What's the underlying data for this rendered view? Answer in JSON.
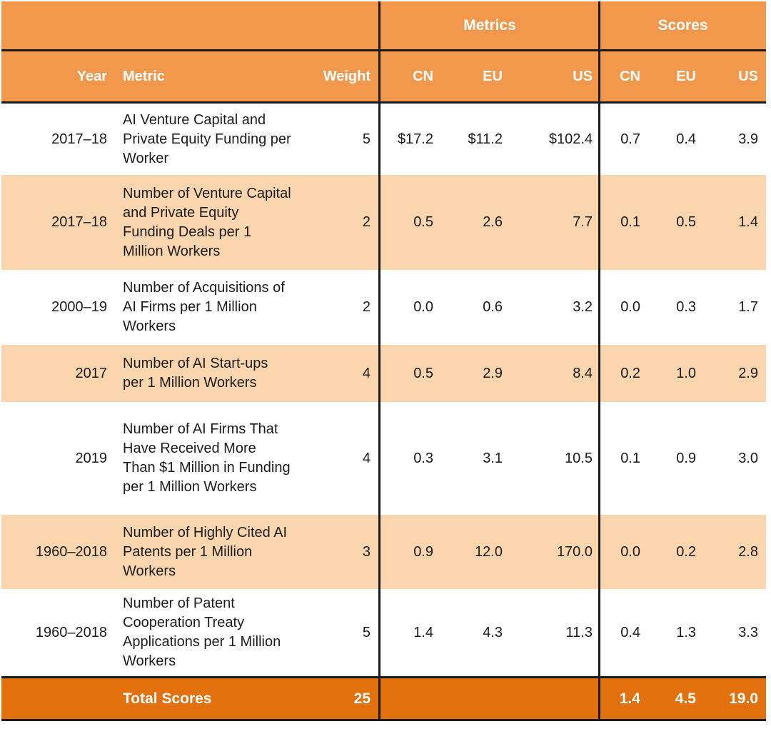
{
  "chart_data": {
    "type": "table",
    "group_headers": {
      "metrics": "Metrics",
      "scores": "Scores"
    },
    "column_headers": {
      "year": "Year",
      "metric": "Metric",
      "weight": "Weight",
      "metrics_cn": "CN",
      "metrics_eu": "EU",
      "metrics_us": "US",
      "scores_cn": "CN",
      "scores_eu": "EU",
      "scores_us": "US"
    },
    "rows": [
      {
        "year": "2017–18",
        "metric": "AI Venture Capital and Private Equity Funding per Worker",
        "weight": "5",
        "m_cn": "$17.2",
        "m_eu": "$11.2",
        "m_us": "$102.4",
        "s_cn": "0.7",
        "s_eu": "0.4",
        "s_us": "3.9"
      },
      {
        "year": "2017–18",
        "metric": "Number of Venture Capital and Private Equity Funding Deals per 1 Million Workers",
        "weight": "2",
        "m_cn": "0.5",
        "m_eu": "2.6",
        "m_us": "7.7",
        "s_cn": "0.1",
        "s_eu": "0.5",
        "s_us": "1.4"
      },
      {
        "year": "2000–19",
        "metric": "Number of Acquisitions of AI Firms per 1 Million Workers",
        "weight": "2",
        "m_cn": "0.0",
        "m_eu": "0.6",
        "m_us": "3.2",
        "s_cn": "0.0",
        "s_eu": "0.3",
        "s_us": "1.7"
      },
      {
        "year": "2017",
        "metric": "Number of AI Start-ups per 1 Million Workers",
        "weight": "4",
        "m_cn": "0.5",
        "m_eu": "2.9",
        "m_us": "8.4",
        "s_cn": "0.2",
        "s_eu": "1.0",
        "s_us": "2.9"
      },
      {
        "year": "2019",
        "metric": "Number of AI Firms That Have Received More Than $1 Million in Funding per 1 Million Workers",
        "weight": "4",
        "m_cn": "0.3",
        "m_eu": "3.1",
        "m_us": "10.5",
        "s_cn": "0.1",
        "s_eu": "0.9",
        "s_us": "3.0"
      },
      {
        "year": "1960–2018",
        "metric": "Number of Highly Cited AI Patents per 1 Million Workers",
        "weight": "3",
        "m_cn": "0.9",
        "m_eu": "12.0",
        "m_us": "170.0",
        "s_cn": "0.0",
        "s_eu": "0.2",
        "s_us": "2.8"
      },
      {
        "year": "1960–2018",
        "metric": "Number of Patent Cooperation Treaty Applications per 1 Million Workers",
        "weight": "5",
        "m_cn": "1.4",
        "m_eu": "4.3",
        "m_us": "11.3",
        "s_cn": "0.4",
        "s_eu": "1.3",
        "s_us": "3.3"
      }
    ],
    "total_row": {
      "label": "Total Scores",
      "weight": "25",
      "s_cn": "1.4",
      "s_eu": "4.5",
      "s_us": "19.0"
    }
  },
  "colors": {
    "header_orange": "#F2984C",
    "row_peach": "#FAD5AE",
    "total_orange": "#E1700D",
    "border": "#1A1A1A",
    "header_text": "#FFFFFF",
    "body_text": "#1C1C1C"
  }
}
